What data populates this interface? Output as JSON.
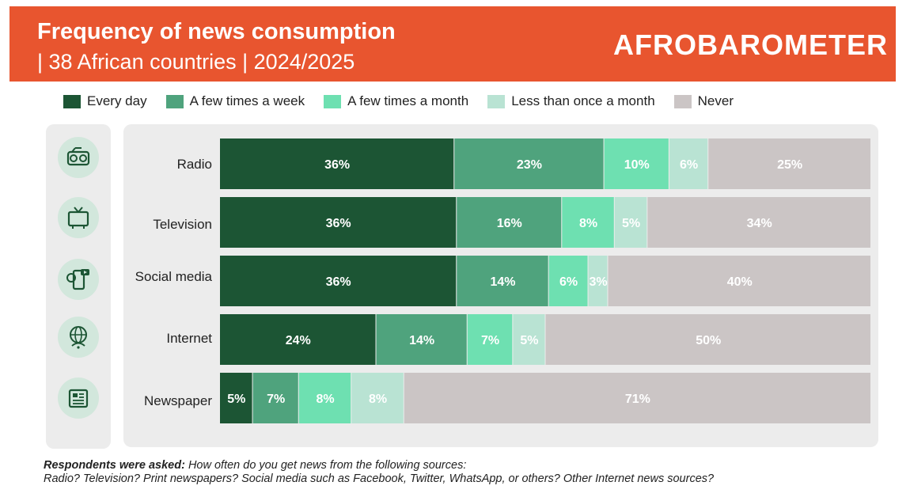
{
  "header": {
    "title": "Frequency of news consumption",
    "subtitle": "| 38 African countries | 2024/2025",
    "brand": "AFROBAROMETER"
  },
  "colors": {
    "header_bg": "#e8552f",
    "every_day": "#1c5534",
    "few_week": "#4fa37d",
    "few_month": "#6ee0b1",
    "less_month": "#b9e3d3",
    "never": "#cbc5c5"
  },
  "icons": [
    "radio-icon",
    "television-icon",
    "social-media-icon",
    "internet-icon",
    "newspaper-icon"
  ],
  "chart_data": {
    "type": "bar",
    "orientation": "horizontal",
    "stacked": true,
    "categories": [
      "Radio",
      "Television",
      "Social media",
      "Internet",
      "Newspaper"
    ],
    "series": [
      {
        "name": "Every day",
        "color": "#1c5534",
        "values": [
          36,
          36,
          36,
          24,
          5
        ]
      },
      {
        "name": "A few times a week",
        "color": "#4fa37d",
        "values": [
          23,
          16,
          14,
          14,
          7
        ]
      },
      {
        "name": "A few times a month",
        "color": "#6ee0b1",
        "values": [
          10,
          8,
          6,
          7,
          8
        ]
      },
      {
        "name": "Less than once a month",
        "color": "#b9e3d3",
        "values": [
          6,
          5,
          3,
          5,
          8
        ]
      },
      {
        "name": "Never",
        "color": "#cbc5c5",
        "values": [
          25,
          34,
          40,
          50,
          71
        ]
      }
    ],
    "legend": "top",
    "value_suffix": "%"
  },
  "footnote": {
    "label": "Respondents were asked:",
    "line1": "How often do you get news from the following sources:",
    "line2": "Radio? Television? Print newspapers? Social media such as Facebook, Twitter, WhatsApp, or others? Other Internet news sources?"
  }
}
